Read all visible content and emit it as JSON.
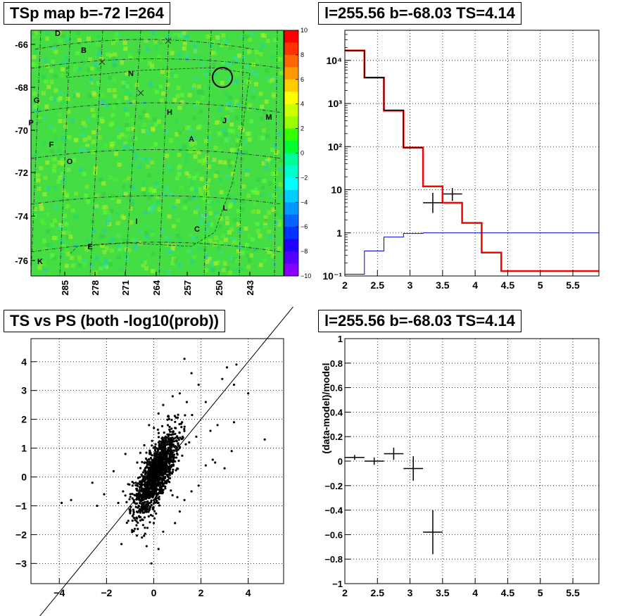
{
  "panels": {
    "tsmap": {
      "title": "TSp map b=-72 l=264"
    },
    "spectrum": {
      "title": "l=255.56 b=-68.03 TS=4.14"
    },
    "scatter": {
      "title": "TS vs PS (both -log10(prob))"
    },
    "residual": {
      "title": "l=255.56 b=-68.03 TS=4.14"
    }
  },
  "chart_data": [
    {
      "type": "heatmap",
      "title": "TSp map b=-72 l=264",
      "y_ticks": [
        "-66",
        "-68",
        "-70",
        "-72",
        "-74",
        "-76"
      ],
      "x_ticks": [
        "285",
        "278",
        "271",
        "264",
        "257",
        "250",
        "243"
      ],
      "colorbar": {
        "range": [
          -10,
          10
        ],
        "ticks": [
          "10",
          "8",
          "6",
          "4",
          "2",
          "0",
          "−2",
          "−4",
          "−6",
          "−8",
          "−10"
        ],
        "colors_top_to_bottom": [
          "#ff0000",
          "#ff3300",
          "#ff6600",
          "#ff9900",
          "#ffcc00",
          "#ffff00",
          "#ccff00",
          "#99ff00",
          "#33ff00",
          "#00ff33",
          "#00ff99",
          "#00ffcc",
          "#00ffff",
          "#00ccff",
          "#0099ff",
          "#0066ff",
          "#0033ff",
          "#2200ff",
          "#5500ff",
          "#8800ff"
        ]
      },
      "background_color": "#44dd44",
      "source_labels": [
        "D",
        "B",
        "N",
        "G",
        "H",
        "J",
        "M",
        "P",
        "F",
        "A",
        "O",
        "I",
        "L",
        "C",
        "E",
        "K"
      ],
      "circle_marker": {
        "l": 250,
        "b": -67.8
      }
    },
    {
      "type": "line",
      "title": "l=255.56 b=-68.03 TS=4.14",
      "y_scale": "log",
      "xlim": [
        2,
        5.9
      ],
      "ylim": [
        0.1,
        50000
      ],
      "x_ticks": [
        "2",
        "2.5",
        "3",
        "3.5",
        "4",
        "4.5",
        "5",
        "5.5"
      ],
      "y_ticks": [
        "10⁻¹",
        "1",
        "10",
        "10²",
        "10³",
        "10⁴"
      ],
      "series": [
        {
          "color": "#ff0000",
          "bin_edges": [
            2.0,
            2.3,
            2.6,
            2.9,
            3.2,
            3.5,
            3.8,
            4.1,
            4.4,
            5.9
          ],
          "values": [
            17000,
            4000,
            680,
            95,
            12,
            5,
            1.7,
            0.35,
            0.13
          ]
        },
        {
          "color": "#000000",
          "bin_edges": [
            2.0,
            2.3,
            2.6,
            2.9,
            3.2
          ],
          "values": [
            17000,
            4000,
            700,
            95
          ]
        },
        {
          "color": "#0000cc",
          "bin_edges": [
            2.0,
            2.3,
            2.6,
            2.9,
            3.2,
            5.9
          ],
          "values": [
            0.11,
            0.38,
            0.8,
            0.97,
            1.0
          ]
        }
      ],
      "data_points": [
        {
          "x": 3.35,
          "y": 5,
          "xerr": 0.15,
          "ylo": 2.9,
          "yhi": 8.5
        },
        {
          "x": 3.65,
          "y": 8,
          "xerr": 0.15,
          "ylo": 5.5,
          "yhi": 11
        }
      ]
    },
    {
      "type": "scatter",
      "title": "TS vs PS (both -log10(prob))",
      "xlim": [
        -5.2,
        5.5
      ],
      "ylim": [
        -3.7,
        4.8
      ],
      "x_ticks": [
        "−4",
        "−2",
        "0",
        "2",
        "4"
      ],
      "y_ticks": [
        "−3",
        "−2",
        "−1",
        "0",
        "1",
        "2",
        "3",
        "4"
      ],
      "grid": true,
      "diagonal_line": {
        "slope": 1,
        "intercept": 0
      },
      "points": [
        [
          -3.9,
          -0.9
        ],
        [
          -3.5,
          -0.8
        ],
        [
          -2.6,
          -0.2
        ],
        [
          -2.1,
          -0.6
        ],
        [
          -2.4,
          -1.0
        ],
        [
          -1.5,
          -0.9
        ],
        [
          -1.7,
          0.2
        ],
        [
          -1.2,
          0.8
        ],
        [
          -0.8,
          -1.8
        ],
        [
          -0.5,
          -2.1
        ],
        [
          -0.3,
          -2.4
        ],
        [
          -0.1,
          -3.0
        ],
        [
          0.2,
          -2.5
        ],
        [
          0.4,
          -1.9
        ],
        [
          0.9,
          -1.6
        ],
        [
          1.1,
          -1.2
        ],
        [
          1.3,
          -0.8
        ],
        [
          1.6,
          -0.5
        ],
        [
          1.9,
          -0.3
        ],
        [
          2.2,
          0.4
        ],
        [
          2.5,
          0.6
        ],
        [
          3.0,
          0.3
        ],
        [
          3.3,
          0.9
        ],
        [
          4.7,
          1.3
        ],
        [
          3.5,
          3.9
        ],
        [
          3.1,
          3.8
        ],
        [
          2.9,
          3.4
        ],
        [
          3.4,
          3.2
        ],
        [
          1.3,
          4.1
        ],
        [
          1.6,
          3.6
        ],
        [
          1.9,
          3.2
        ],
        [
          1.1,
          2.9
        ],
        [
          2.2,
          2.6
        ],
        [
          0.8,
          2.8
        ],
        [
          1.4,
          2.6
        ],
        [
          0.4,
          2.5
        ],
        [
          0.6,
          2.1
        ],
        [
          0.2,
          2.2
        ],
        [
          1.2,
          1.9
        ],
        [
          2.4,
          1.6
        ],
        [
          2.7,
          1.8
        ],
        [
          1.8,
          1.4
        ],
        [
          0.9,
          1.7
        ],
        [
          -0.2,
          1.8
        ],
        [
          -0.4,
          1.1
        ],
        [
          0.5,
          1.4
        ],
        [
          1.5,
          1.2
        ],
        [
          -0.6,
          -1.4
        ],
        [
          -0.9,
          -0.3
        ],
        [
          -0.7,
          0.5
        ],
        [
          2.6,
          0.5
        ],
        [
          3.4,
          1.9
        ],
        [
          4.0,
          2.9
        ],
        [
          1.0,
          -0.7
        ],
        [
          -1.0,
          -1.2
        ],
        [
          -1.3,
          -0.5
        ],
        [
          0.0,
          -1.6
        ],
        [
          0.1,
          -0.5
        ],
        [
          0.3,
          0.2
        ],
        [
          0.5,
          0.6
        ],
        [
          0.7,
          0.9
        ],
        [
          -0.2,
          0.3
        ],
        [
          -0.5,
          -0.4
        ],
        [
          0.2,
          -0.9
        ],
        [
          0.8,
          0.4
        ],
        [
          0.4,
          -0.3
        ]
      ]
    },
    {
      "type": "scatter",
      "title": "l=255.56 b=-68.03 TS=4.14",
      "xlim": [
        2,
        5.9
      ],
      "ylim": [
        -1,
        1
      ],
      "ylabel": "(data-model)/model",
      "x_ticks": [
        "2",
        "2.5",
        "3",
        "3.5",
        "4",
        "4.5",
        "5",
        "5.5"
      ],
      "y_ticks": [
        "−1",
        "−0.8",
        "−0.6",
        "−0.4",
        "−0.2",
        "0",
        "0.2",
        "0.4",
        "0.6",
        "0.8",
        "1"
      ],
      "grid": true,
      "points": [
        {
          "x": 2.15,
          "y": 0.03,
          "xerr": 0.15,
          "yerr": 0.02
        },
        {
          "x": 2.45,
          "y": 0.0,
          "xerr": 0.15,
          "yerr": 0.03
        },
        {
          "x": 2.75,
          "y": 0.06,
          "xerr": 0.15,
          "yerr": 0.05
        },
        {
          "x": 3.05,
          "y": -0.06,
          "xerr": 0.15,
          "yerr": 0.1
        },
        {
          "x": 3.35,
          "y": -0.58,
          "xerr": 0.15,
          "yerr": 0.18
        }
      ]
    }
  ]
}
